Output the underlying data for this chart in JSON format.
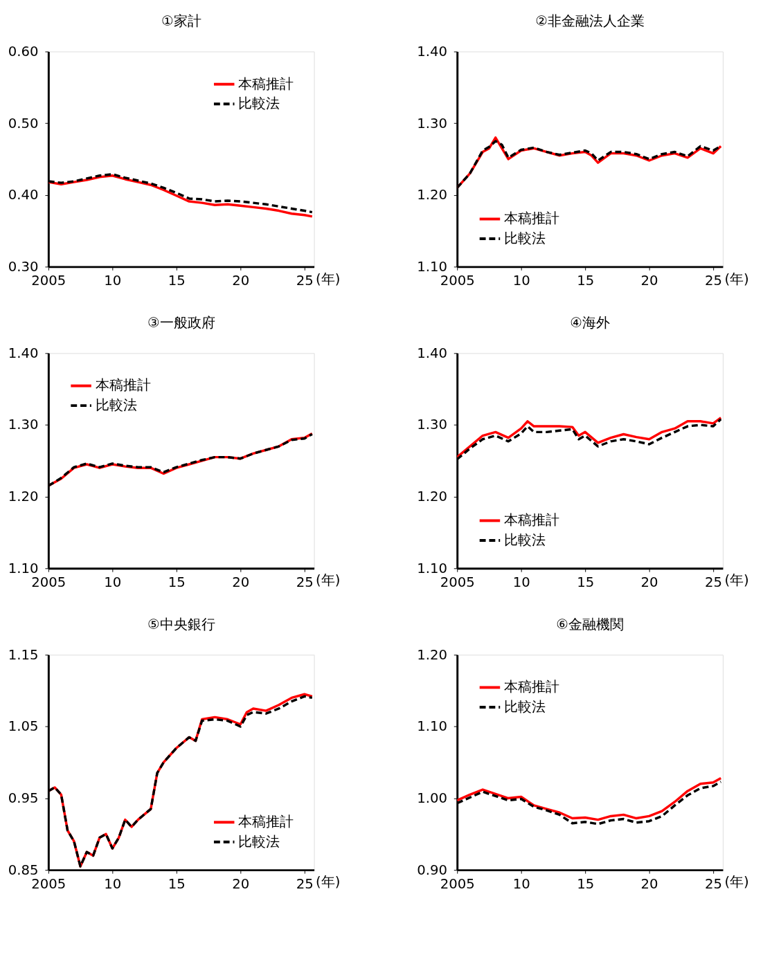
{
  "chart_data": [
    {
      "type": "line",
      "title": "①家計",
      "xlabel": "(年)",
      "x": [
        2005,
        2006,
        2007,
        2008,
        2009,
        2010,
        2011,
        2012,
        2013,
        2014,
        2015,
        2016,
        2017,
        2018,
        2019,
        2020,
        2021,
        2022,
        2023,
        2024,
        2025,
        2025.6
      ],
      "xlim": [
        2005,
        2025.75
      ],
      "xticks": [
        {
          "value": 2005,
          "label": "2005"
        },
        {
          "value": 2010,
          "label": "10"
        },
        {
          "value": 2015,
          "label": "15"
        },
        {
          "value": 2020,
          "label": "20"
        },
        {
          "value": 2025,
          "label": "25"
        }
      ],
      "ylim": [
        0.3,
        0.6
      ],
      "yticks": [
        {
          "value": 0.3,
          "label": "0.30"
        },
        {
          "value": 0.4,
          "label": "0.40"
        },
        {
          "value": 0.5,
          "label": "0.50"
        },
        {
          "value": 0.6,
          "label": "0.60"
        }
      ],
      "grid": false,
      "legend": "top right",
      "series": [
        {
          "name": "本稿推計",
          "color": "#ff0000",
          "line_style": "solid",
          "values": [
            0.418,
            0.415,
            0.418,
            0.421,
            0.425,
            0.427,
            0.422,
            0.418,
            0.414,
            0.407,
            0.399,
            0.391,
            0.389,
            0.386,
            0.387,
            0.385,
            0.383,
            0.381,
            0.378,
            0.374,
            0.372,
            0.37
          ]
        },
        {
          "name": "比較法",
          "color": "#000000",
          "line_style": "dashed",
          "values": [
            0.419,
            0.417,
            0.419,
            0.423,
            0.427,
            0.429,
            0.424,
            0.42,
            0.416,
            0.41,
            0.403,
            0.395,
            0.394,
            0.391,
            0.392,
            0.391,
            0.389,
            0.387,
            0.384,
            0.381,
            0.378,
            0.376
          ]
        }
      ]
    },
    {
      "type": "line",
      "title": "②非金融法人企業",
      "xlabel": "(年)",
      "x": [
        2005,
        2006,
        2007,
        2007.5,
        2008,
        2008.5,
        2009,
        2010,
        2011,
        2012,
        2013,
        2014,
        2015,
        2015.5,
        2016,
        2017,
        2018,
        2019,
        2020,
        2021,
        2022,
        2023,
        2024,
        2025,
        2025.6
      ],
      "xlim": [
        2005,
        2025.75
      ],
      "xticks": [
        {
          "value": 2005,
          "label": "2005"
        },
        {
          "value": 2010,
          "label": "10"
        },
        {
          "value": 2015,
          "label": "15"
        },
        {
          "value": 2020,
          "label": "20"
        },
        {
          "value": 2025,
          "label": "25"
        }
      ],
      "ylim": [
        1.1,
        1.4
      ],
      "yticks": [
        {
          "value": 1.1,
          "label": "1.10"
        },
        {
          "value": 1.2,
          "label": "1.20"
        },
        {
          "value": 1.3,
          "label": "1.30"
        },
        {
          "value": 1.4,
          "label": "1.40"
        }
      ],
      "grid": false,
      "legend": "bottom left",
      "series": [
        {
          "name": "本稿推計",
          "color": "#ff0000",
          "line_style": "solid",
          "values": [
            1.21,
            1.23,
            1.26,
            1.265,
            1.28,
            1.265,
            1.25,
            1.262,
            1.265,
            1.26,
            1.255,
            1.258,
            1.26,
            1.255,
            1.245,
            1.258,
            1.258,
            1.255,
            1.248,
            1.255,
            1.258,
            1.252,
            1.265,
            1.258,
            1.268
          ]
        },
        {
          "name": "比較法",
          "color": "#000000",
          "line_style": "dashed",
          "values": [
            1.21,
            1.23,
            1.262,
            1.267,
            1.275,
            1.27,
            1.252,
            1.263,
            1.266,
            1.26,
            1.256,
            1.259,
            1.262,
            1.258,
            1.248,
            1.26,
            1.26,
            1.257,
            1.25,
            1.257,
            1.26,
            1.254,
            1.268,
            1.262,
            1.268
          ]
        }
      ]
    },
    {
      "type": "line",
      "title": "③一般政府",
      "xlabel": "(年)",
      "x": [
        2005,
        2006,
        2007,
        2008,
        2009,
        2010,
        2011,
        2012,
        2013,
        2014,
        2015,
        2016,
        2017,
        2018,
        2019,
        2020,
        2021,
        2022,
        2023,
        2024,
        2025,
        2025.6
      ],
      "xlim": [
        2005,
        2025.75
      ],
      "xticks": [
        {
          "value": 2005,
          "label": "2005"
        },
        {
          "value": 2010,
          "label": "10"
        },
        {
          "value": 2015,
          "label": "15"
        },
        {
          "value": 2020,
          "label": "20"
        },
        {
          "value": 2025,
          "label": "25"
        }
      ],
      "ylim": [
        1.1,
        1.4
      ],
      "yticks": [
        {
          "value": 1.1,
          "label": "1.10"
        },
        {
          "value": 1.2,
          "label": "1.20"
        },
        {
          "value": 1.3,
          "label": "1.30"
        },
        {
          "value": 1.4,
          "label": "1.40"
        }
      ],
      "grid": false,
      "legend": "top left",
      "series": [
        {
          "name": "本稿推計",
          "color": "#ff0000",
          "line_style": "solid",
          "values": [
            1.215,
            1.225,
            1.24,
            1.245,
            1.24,
            1.245,
            1.242,
            1.24,
            1.24,
            1.232,
            1.24,
            1.245,
            1.25,
            1.255,
            1.255,
            1.253,
            1.26,
            1.265,
            1.27,
            1.28,
            1.282,
            1.288
          ]
        },
        {
          "name": "比較法",
          "color": "#000000",
          "line_style": "dashed",
          "values": [
            1.215,
            1.226,
            1.241,
            1.246,
            1.241,
            1.246,
            1.243,
            1.241,
            1.241,
            1.234,
            1.241,
            1.246,
            1.251,
            1.255,
            1.255,
            1.253,
            1.26,
            1.265,
            1.27,
            1.279,
            1.281,
            1.287
          ]
        }
      ]
    },
    {
      "type": "line",
      "title": "④海外",
      "xlabel": "(年)",
      "x": [
        2005,
        2006,
        2007,
        2008,
        2009,
        2010,
        2010.5,
        2011,
        2012,
        2013,
        2014,
        2014.5,
        2015,
        2016,
        2017,
        2018,
        2019,
        2020,
        2021,
        2022,
        2023,
        2024,
        2025,
        2025.6
      ],
      "xlim": [
        2005,
        2025.75
      ],
      "xticks": [
        {
          "value": 2005,
          "label": "2005"
        },
        {
          "value": 2010,
          "label": "10"
        },
        {
          "value": 2015,
          "label": "15"
        },
        {
          "value": 2020,
          "label": "20"
        },
        {
          "value": 2025,
          "label": "25"
        }
      ],
      "ylim": [
        1.1,
        1.4
      ],
      "yticks": [
        {
          "value": 1.1,
          "label": "1.10"
        },
        {
          "value": 1.2,
          "label": "1.20"
        },
        {
          "value": 1.3,
          "label": "1.30"
        },
        {
          "value": 1.4,
          "label": "1.40"
        }
      ],
      "grid": false,
      "legend": "bottom left",
      "series": [
        {
          "name": "本稿推計",
          "color": "#ff0000",
          "line_style": "solid",
          "values": [
            1.255,
            1.27,
            1.285,
            1.29,
            1.282,
            1.295,
            1.305,
            1.298,
            1.298,
            1.298,
            1.297,
            1.285,
            1.29,
            1.275,
            1.282,
            1.287,
            1.283,
            1.28,
            1.29,
            1.295,
            1.305,
            1.305,
            1.302,
            1.31
          ]
        },
        {
          "name": "比較法",
          "color": "#000000",
          "line_style": "dashed",
          "values": [
            1.252,
            1.267,
            1.28,
            1.285,
            1.277,
            1.288,
            1.298,
            1.29,
            1.29,
            1.292,
            1.294,
            1.28,
            1.285,
            1.27,
            1.277,
            1.28,
            1.277,
            1.273,
            1.282,
            1.29,
            1.298,
            1.3,
            1.298,
            1.308
          ]
        }
      ]
    },
    {
      "type": "line",
      "title": "⑤中央銀行",
      "xlabel": "(年)",
      "x": [
        2005,
        2005.5,
        2006,
        2006.5,
        2007,
        2007.5,
        2008,
        2008.5,
        2009,
        2009.5,
        2010,
        2010.5,
        2011,
        2011.5,
        2012,
        2013,
        2013.5,
        2014,
        2015,
        2016,
        2016.5,
        2017,
        2018,
        2019,
        2020,
        2020.5,
        2021,
        2022,
        2023,
        2024,
        2025,
        2025.6
      ],
      "xlim": [
        2005,
        2025.75
      ],
      "xticks": [
        {
          "value": 2005,
          "label": "2005"
        },
        {
          "value": 2010,
          "label": "10"
        },
        {
          "value": 2015,
          "label": "15"
        },
        {
          "value": 2020,
          "label": "20"
        },
        {
          "value": 2025,
          "label": "25"
        }
      ],
      "ylim": [
        0.85,
        1.15
      ],
      "yticks": [
        {
          "value": 0.85,
          "label": "0.85"
        },
        {
          "value": 0.95,
          "label": "0.95"
        },
        {
          "value": 1.05,
          "label": "1.05"
        },
        {
          "value": 1.15,
          "label": "1.15"
        }
      ],
      "grid": false,
      "legend": "bottom right",
      "series": [
        {
          "name": "本稿推計",
          "color": "#ff0000",
          "line_style": "solid",
          "values": [
            0.96,
            0.965,
            0.955,
            0.905,
            0.89,
            0.855,
            0.875,
            0.87,
            0.895,
            0.9,
            0.88,
            0.895,
            0.92,
            0.91,
            0.92,
            0.935,
            0.985,
            1.0,
            1.02,
            1.035,
            1.03,
            1.06,
            1.063,
            1.06,
            1.053,
            1.07,
            1.075,
            1.072,
            1.08,
            1.09,
            1.095,
            1.092
          ]
        },
        {
          "name": "比較法",
          "color": "#000000",
          "line_style": "dashed",
          "values": [
            0.96,
            0.965,
            0.955,
            0.905,
            0.89,
            0.855,
            0.875,
            0.87,
            0.895,
            0.9,
            0.88,
            0.895,
            0.92,
            0.91,
            0.92,
            0.935,
            0.985,
            1.0,
            1.02,
            1.035,
            1.03,
            1.058,
            1.06,
            1.058,
            1.05,
            1.066,
            1.07,
            1.068,
            1.075,
            1.085,
            1.092,
            1.09
          ]
        }
      ]
    },
    {
      "type": "line",
      "title": "⑥金融機関",
      "xlabel": "(年)",
      "x": [
        2005,
        2006,
        2007,
        2008,
        2009,
        2010,
        2011,
        2012,
        2013,
        2014,
        2015,
        2016,
        2017,
        2018,
        2019,
        2020,
        2021,
        2022,
        2023,
        2024,
        2025,
        2025.6
      ],
      "xlim": [
        2005,
        2025.75
      ],
      "xticks": [
        {
          "value": 2005,
          "label": "2005"
        },
        {
          "value": 2010,
          "label": "10"
        },
        {
          "value": 2015,
          "label": "15"
        },
        {
          "value": 2020,
          "label": "20"
        },
        {
          "value": 2025,
          "label": "25"
        }
      ],
      "ylim": [
        0.9,
        1.2
      ],
      "yticks": [
        {
          "value": 0.9,
          "label": "0.90"
        },
        {
          "value": 1.0,
          "label": "1.00"
        },
        {
          "value": 1.1,
          "label": "1.10"
        },
        {
          "value": 1.2,
          "label": "1.20"
        }
      ],
      "grid": false,
      "legend": "top left",
      "series": [
        {
          "name": "本稿推計",
          "color": "#ff0000",
          "line_style": "solid",
          "values": [
            0.997,
            1.005,
            1.012,
            1.006,
            1.0,
            1.002,
            0.99,
            0.985,
            0.98,
            0.972,
            0.973,
            0.97,
            0.975,
            0.977,
            0.972,
            0.975,
            0.982,
            0.995,
            1.01,
            1.02,
            1.022,
            1.028
          ]
        },
        {
          "name": "比較法",
          "color": "#000000",
          "line_style": "dashed",
          "values": [
            0.993,
            1.001,
            1.009,
            1.003,
            0.997,
            0.999,
            0.988,
            0.983,
            0.977,
            0.965,
            0.967,
            0.964,
            0.969,
            0.971,
            0.966,
            0.968,
            0.975,
            0.99,
            1.004,
            1.014,
            1.017,
            1.023
          ]
        }
      ]
    }
  ]
}
